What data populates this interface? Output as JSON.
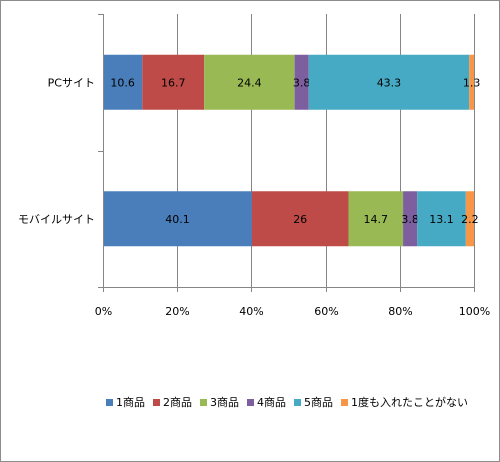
{
  "chart_data": {
    "type": "bar",
    "orientation": "horizontal",
    "stacked": "percent",
    "categories": [
      "PCサイト",
      "モバイルサイト"
    ],
    "series": [
      {
        "name": "1商品",
        "color": "#4a7ebb",
        "values": [
          10.6,
          40.1
        ],
        "labels": [
          "10.6",
          "40.1"
        ]
      },
      {
        "name": "2商品",
        "color": "#be4b48",
        "values": [
          16.7,
          26
        ],
        "labels": [
          "16.7",
          "26"
        ]
      },
      {
        "name": "3商品",
        "color": "#98b954",
        "values": [
          24.4,
          14.7
        ],
        "labels": [
          "24.4",
          "14.7"
        ]
      },
      {
        "name": "4商品",
        "color": "#7d5fa0",
        "values": [
          3.8,
          3.8
        ],
        "labels": [
          "3.8",
          "3.8"
        ]
      },
      {
        "name": "5商品",
        "color": "#46aac5",
        "values": [
          43.3,
          13.1
        ],
        "labels": [
          "43.3",
          "13.1"
        ]
      },
      {
        "name": "1度も入れたことがない",
        "color": "#f79646",
        "values": [
          1.3,
          2.2
        ],
        "labels": [
          "1.3",
          "2.2"
        ]
      }
    ],
    "x_ticks": [
      "0%",
      "20%",
      "40%",
      "60%",
      "80%",
      "100%"
    ],
    "xlim": [
      0,
      100
    ],
    "grid": true,
    "legend_position": "bottom"
  }
}
